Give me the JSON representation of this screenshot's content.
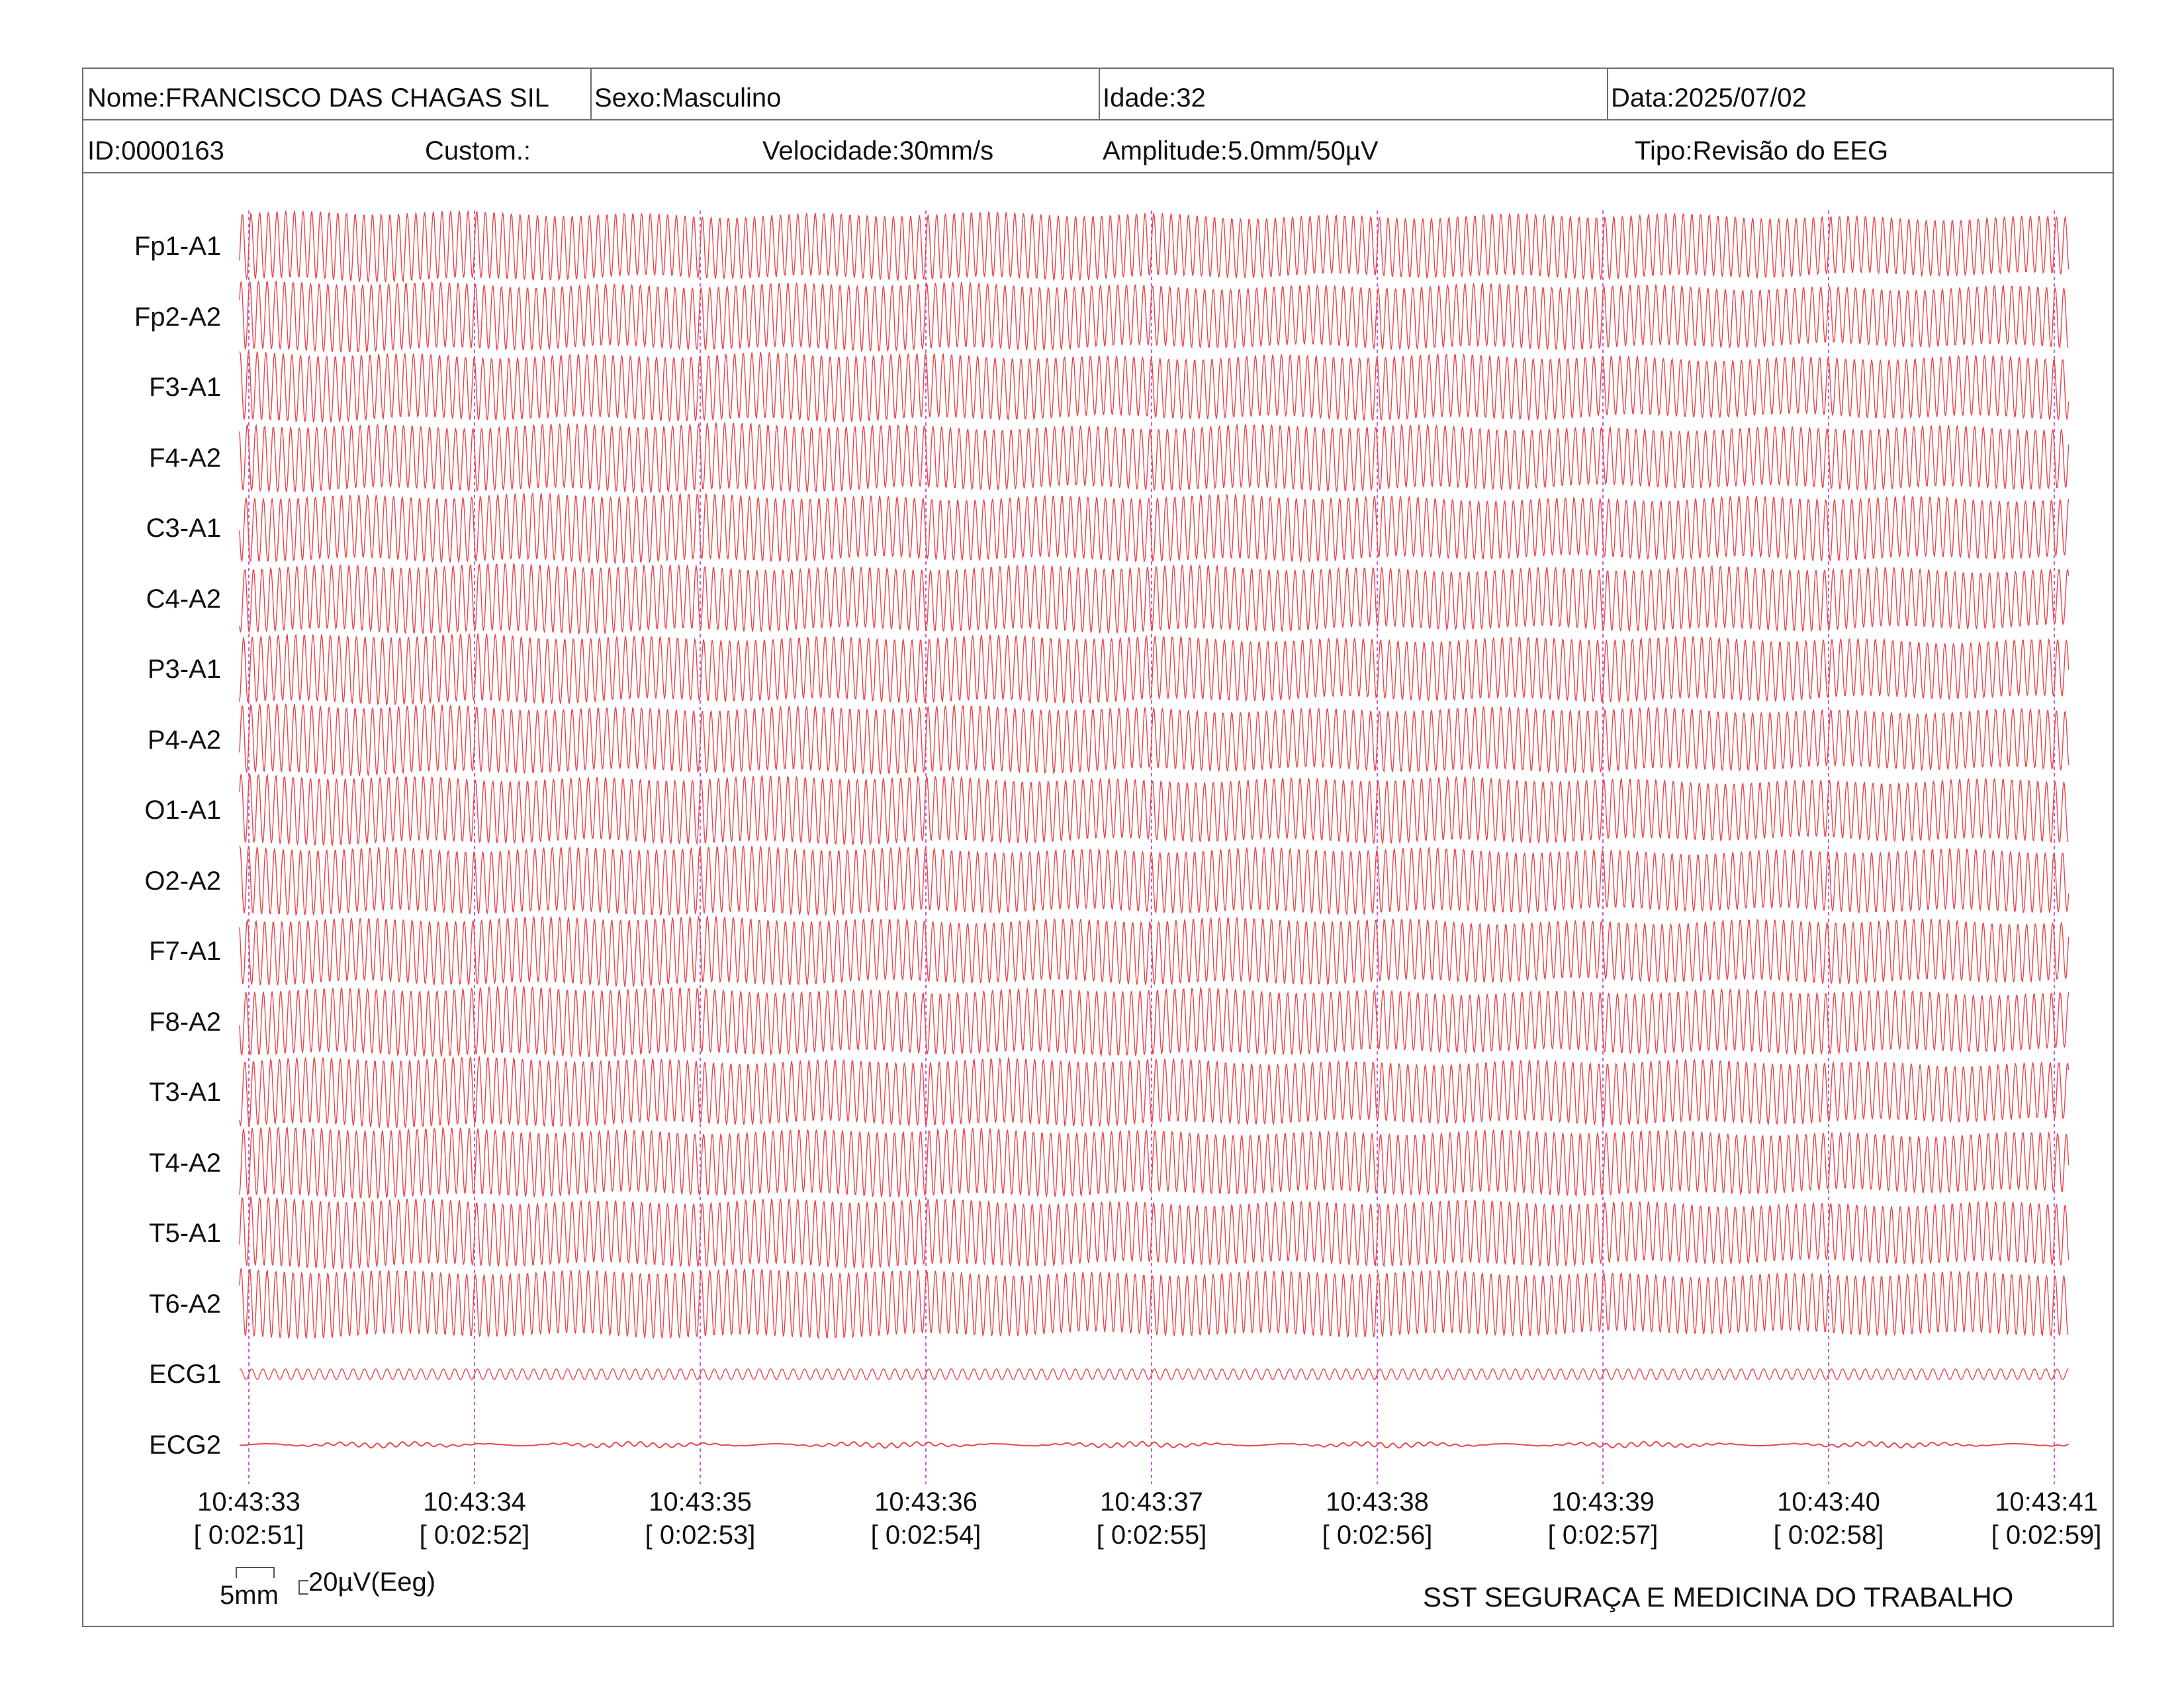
{
  "header": {
    "nome": "Nome:FRANCISCO DAS CHAGAS SIL",
    "sexo": "Sexo:Masculino",
    "idade": "Idade:32",
    "data": "Data:2025/07/02",
    "id": "ID:0000163",
    "custom": "Custom.:",
    "velocidade": "Velocidade:30mm/s",
    "amplitude": "Amplitude:5.0mm/50µV",
    "tipo": "Tipo:Revisão do EEG"
  },
  "scale": {
    "time_bar_label": "5mm",
    "amp_bar_label": "20µV(Eeg)"
  },
  "footer": {
    "organization": "SST SEGURAÇA E MEDICINA DO TRABALHO"
  },
  "colors": {
    "trace": "#e8464a",
    "marker": "#c85ad8",
    "border": "#6e6e6e"
  },
  "chart_data": {
    "type": "line",
    "channels": [
      "Fp1-A1",
      "Fp2-A2",
      "F3-A1",
      "F4-A2",
      "C3-A1",
      "C4-A2",
      "P3-A1",
      "P4-A2",
      "O1-A1",
      "O2-A2",
      "F7-A1",
      "F8-A2",
      "T3-A1",
      "T4-A2",
      "T5-A1",
      "T6-A2",
      "ECG1",
      "ECG2"
    ],
    "time_ticks": [
      {
        "clock": "10:43:33",
        "elapsed": "[ 0:02:51]"
      },
      {
        "clock": "10:43:34",
        "elapsed": "[ 0:02:52]"
      },
      {
        "clock": "10:43:35",
        "elapsed": "[ 0:02:53]"
      },
      {
        "clock": "10:43:36",
        "elapsed": "[ 0:02:54]"
      },
      {
        "clock": "10:43:37",
        "elapsed": "[ 0:02:55]"
      },
      {
        "clock": "10:43:38",
        "elapsed": "[ 0:02:56]"
      },
      {
        "clock": "10:43:39",
        "elapsed": "[ 0:02:57]"
      },
      {
        "clock": "10:43:40",
        "elapsed": "[ 0:02:58]"
      },
      {
        "clock": "10:43:41",
        "elapsed": "[ 0:02:59]"
      }
    ],
    "eeg_frequency_hz": 26,
    "ecg1_frequency_hz": 20,
    "grid_vertical_markers": true
  }
}
